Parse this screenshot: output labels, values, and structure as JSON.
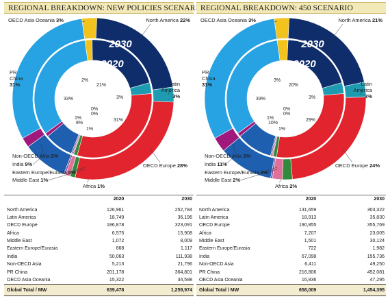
{
  "chart_data": [
    {
      "type": "pie",
      "title": "REGIONAL BREAKDOWN: NEW POLICIES SCENARIO",
      "rings": [
        {
          "name": "2030",
          "values_pct": {
            "North America": 22,
            "Latin America": 3,
            "OECD Europe": 28,
            "Africa": 1,
            "Middle East": 1,
            "Eastern Europe/Eurasia": 0,
            "India": 9,
            "Non-OECD Asia": 2,
            "PR China": 31,
            "OECD Asia Oceania": 3
          }
        },
        {
          "name": "2020",
          "values_pct": {
            "North America": 21,
            "Latin America": 3,
            "OECD Europe": 31,
            "Africa": 1,
            "Middle East": 0,
            "Eastern Europe/Eurasia": 0,
            "India": 8,
            "Non-OECD Asia": 1,
            "PR China": 33,
            "OECD Asia Oceania": 2
          }
        }
      ],
      "table": {
        "columns": [
          "",
          "2020",
          "2030"
        ],
        "rows": [
          [
            "North America",
            "126,961",
            "252,784"
          ],
          [
            "Latin America",
            "18,749",
            "36,196"
          ],
          [
            "OECD Europe",
            "186,878",
            "323,091"
          ],
          [
            "Africa",
            "6,575",
            "15,908"
          ],
          [
            "Middle East",
            "1,072",
            "8,009"
          ],
          [
            "Eastern Europe/Eurasia",
            "668",
            "1,117"
          ],
          [
            "India",
            "50,063",
            "111,938"
          ],
          [
            "Non-OECD Asia",
            "5,213",
            "21,796"
          ],
          [
            "PR China",
            "201,178",
            "364,801"
          ],
          [
            "OECD Asia Oceania",
            "15,322",
            "34,598"
          ]
        ],
        "total": [
          "Global Total / MW",
          "639,478",
          "1,259,974"
        ]
      }
    },
    {
      "type": "pie",
      "title": "REGIONAL BREAKDOWN: 450 SCENARIO",
      "rings": [
        {
          "name": "2030",
          "values_pct": {
            "North America": 21,
            "Latin America": 3,
            "OECD Europe": 24,
            "Africa": 2,
            "Middle East": 2,
            "Eastern Europe/Eurasia": 0,
            "India": 11,
            "Non-OECD Asia": 3,
            "PR China": 31,
            "OECD Asia Oceania": 3
          }
        },
        {
          "name": "2020",
          "values_pct": {
            "North America": 20,
            "Latin America": 3,
            "OECD Europe": 29,
            "Africa": 1,
            "Middle East": 0,
            "Eastern Europe/Eurasia": 0,
            "India": 10,
            "Non-OECD Asia": 1,
            "PR China": 33,
            "OECD Asia Oceania": 3
          }
        }
      ],
      "table": {
        "columns": [
          "",
          "2020",
          "2030"
        ],
        "rows": [
          [
            "North America",
            "131,659",
            "303,322"
          ],
          [
            "Latin America",
            "18,913",
            "35,830"
          ],
          [
            "OECD Europe",
            "190,855",
            "355,769"
          ],
          [
            "Africa",
            "7,207",
            "23,005"
          ],
          [
            "Middle East",
            "1,501",
            "30,124"
          ],
          [
            "Eastern Europe/Eurasia",
            "722",
            "1,982"
          ],
          [
            "India",
            "67,098",
            "155,736"
          ],
          [
            "Non-OECD Asia",
            "6,411",
            "49,250"
          ],
          [
            "PR China",
            "216,806",
            "452,081"
          ],
          [
            "OECD Asia Oceania",
            "16,836",
            "47,295"
          ]
        ],
        "total": [
          "Global Total / MW",
          "658,009",
          "1,454,395"
        ]
      }
    }
  ],
  "colors": {
    "North America": "#0f2d6b",
    "Latin America": "#1e9bb0",
    "OECD Europe": "#e1242d",
    "Africa": "#2f8a3c",
    "Middle East": "#e0709a",
    "Eastern Europe/Eurasia": "#7a4a9a",
    "India": "#1e5fb0",
    "Non-OECD Asia": "#a0187c",
    "PR China": "#27a2e3",
    "OECD Asia Oceania": "#f2c21d"
  },
  "panels": [
    {
      "year_labels": [
        "2030",
        "2020"
      ],
      "outer_labels": {
        "OECD Asia Oceania": {
          "name": "OECD Asia Oceania",
          "pct": "3%"
        },
        "North America": {
          "name": "North America",
          "pct": "22%"
        },
        "Latin America": {
          "name": "Latin America",
          "pct": "3%"
        },
        "OECD Europe": {
          "name": "OECD Europe",
          "pct": "28%"
        },
        "Africa": {
          "name": "Africa",
          "pct": "1%"
        },
        "Middle East": {
          "name": "Middle East",
          "pct": "1%"
        },
        "Eastern Europe/Eurasia": {
          "name": "Eastern Europe/Eurasia",
          "pct": "0%"
        },
        "India": {
          "name": "India",
          "pct": "9%"
        },
        "Non-OECD Asia": {
          "name": "Non-OECD Asia",
          "pct": "2%"
        },
        "PR China": {
          "name": "PR China",
          "pct": "31%"
        }
      },
      "inner_labels": {
        "OECD Asia Oceania": "2%",
        "North America": "21%",
        "Latin America": "3%",
        "OECD Europe": "31%",
        "Africa": "1%",
        "Middle East": "0%",
        "Eastern Europe/Eurasia": "0%",
        "India": "8%",
        "Non-OECD Asia": "1%",
        "PR China": "33%"
      }
    },
    {
      "year_labels": [
        "2030",
        "2020"
      ],
      "outer_labels": {
        "OECD Asia Oceania": {
          "name": "OECD Asia Oceania",
          "pct": "3%"
        },
        "North America": {
          "name": "North America",
          "pct": "21%"
        },
        "Latin America": {
          "name": "Latin America",
          "pct": "3%"
        },
        "OECD Europe": {
          "name": "OECD Europe",
          "pct": "24%"
        },
        "Africa": {
          "name": "Africa",
          "pct": "2%"
        },
        "Middle East": {
          "name": "Middle East",
          "pct": "2%"
        },
        "Eastern Europe/Eurasia": {
          "name": "Eastern Europe/Eurasia",
          "pct": "0%"
        },
        "India": {
          "name": "India",
          "pct": "11%"
        },
        "Non-OECD Asia": {
          "name": "Non-OECD Asia",
          "pct": "3%"
        },
        "PR China": {
          "name": "PR China",
          "pct": "31%"
        }
      },
      "inner_labels": {
        "OECD Asia Oceania": "3%",
        "North America": "20%",
        "Latin America": "3%",
        "OECD Europe": "29%",
        "Africa": "1%",
        "Middle East": "0%",
        "Eastern Europe/Eurasia": "0%",
        "India": "10%",
        "Non-OECD Asia": "1%",
        "PR China": "33%"
      }
    }
  ]
}
